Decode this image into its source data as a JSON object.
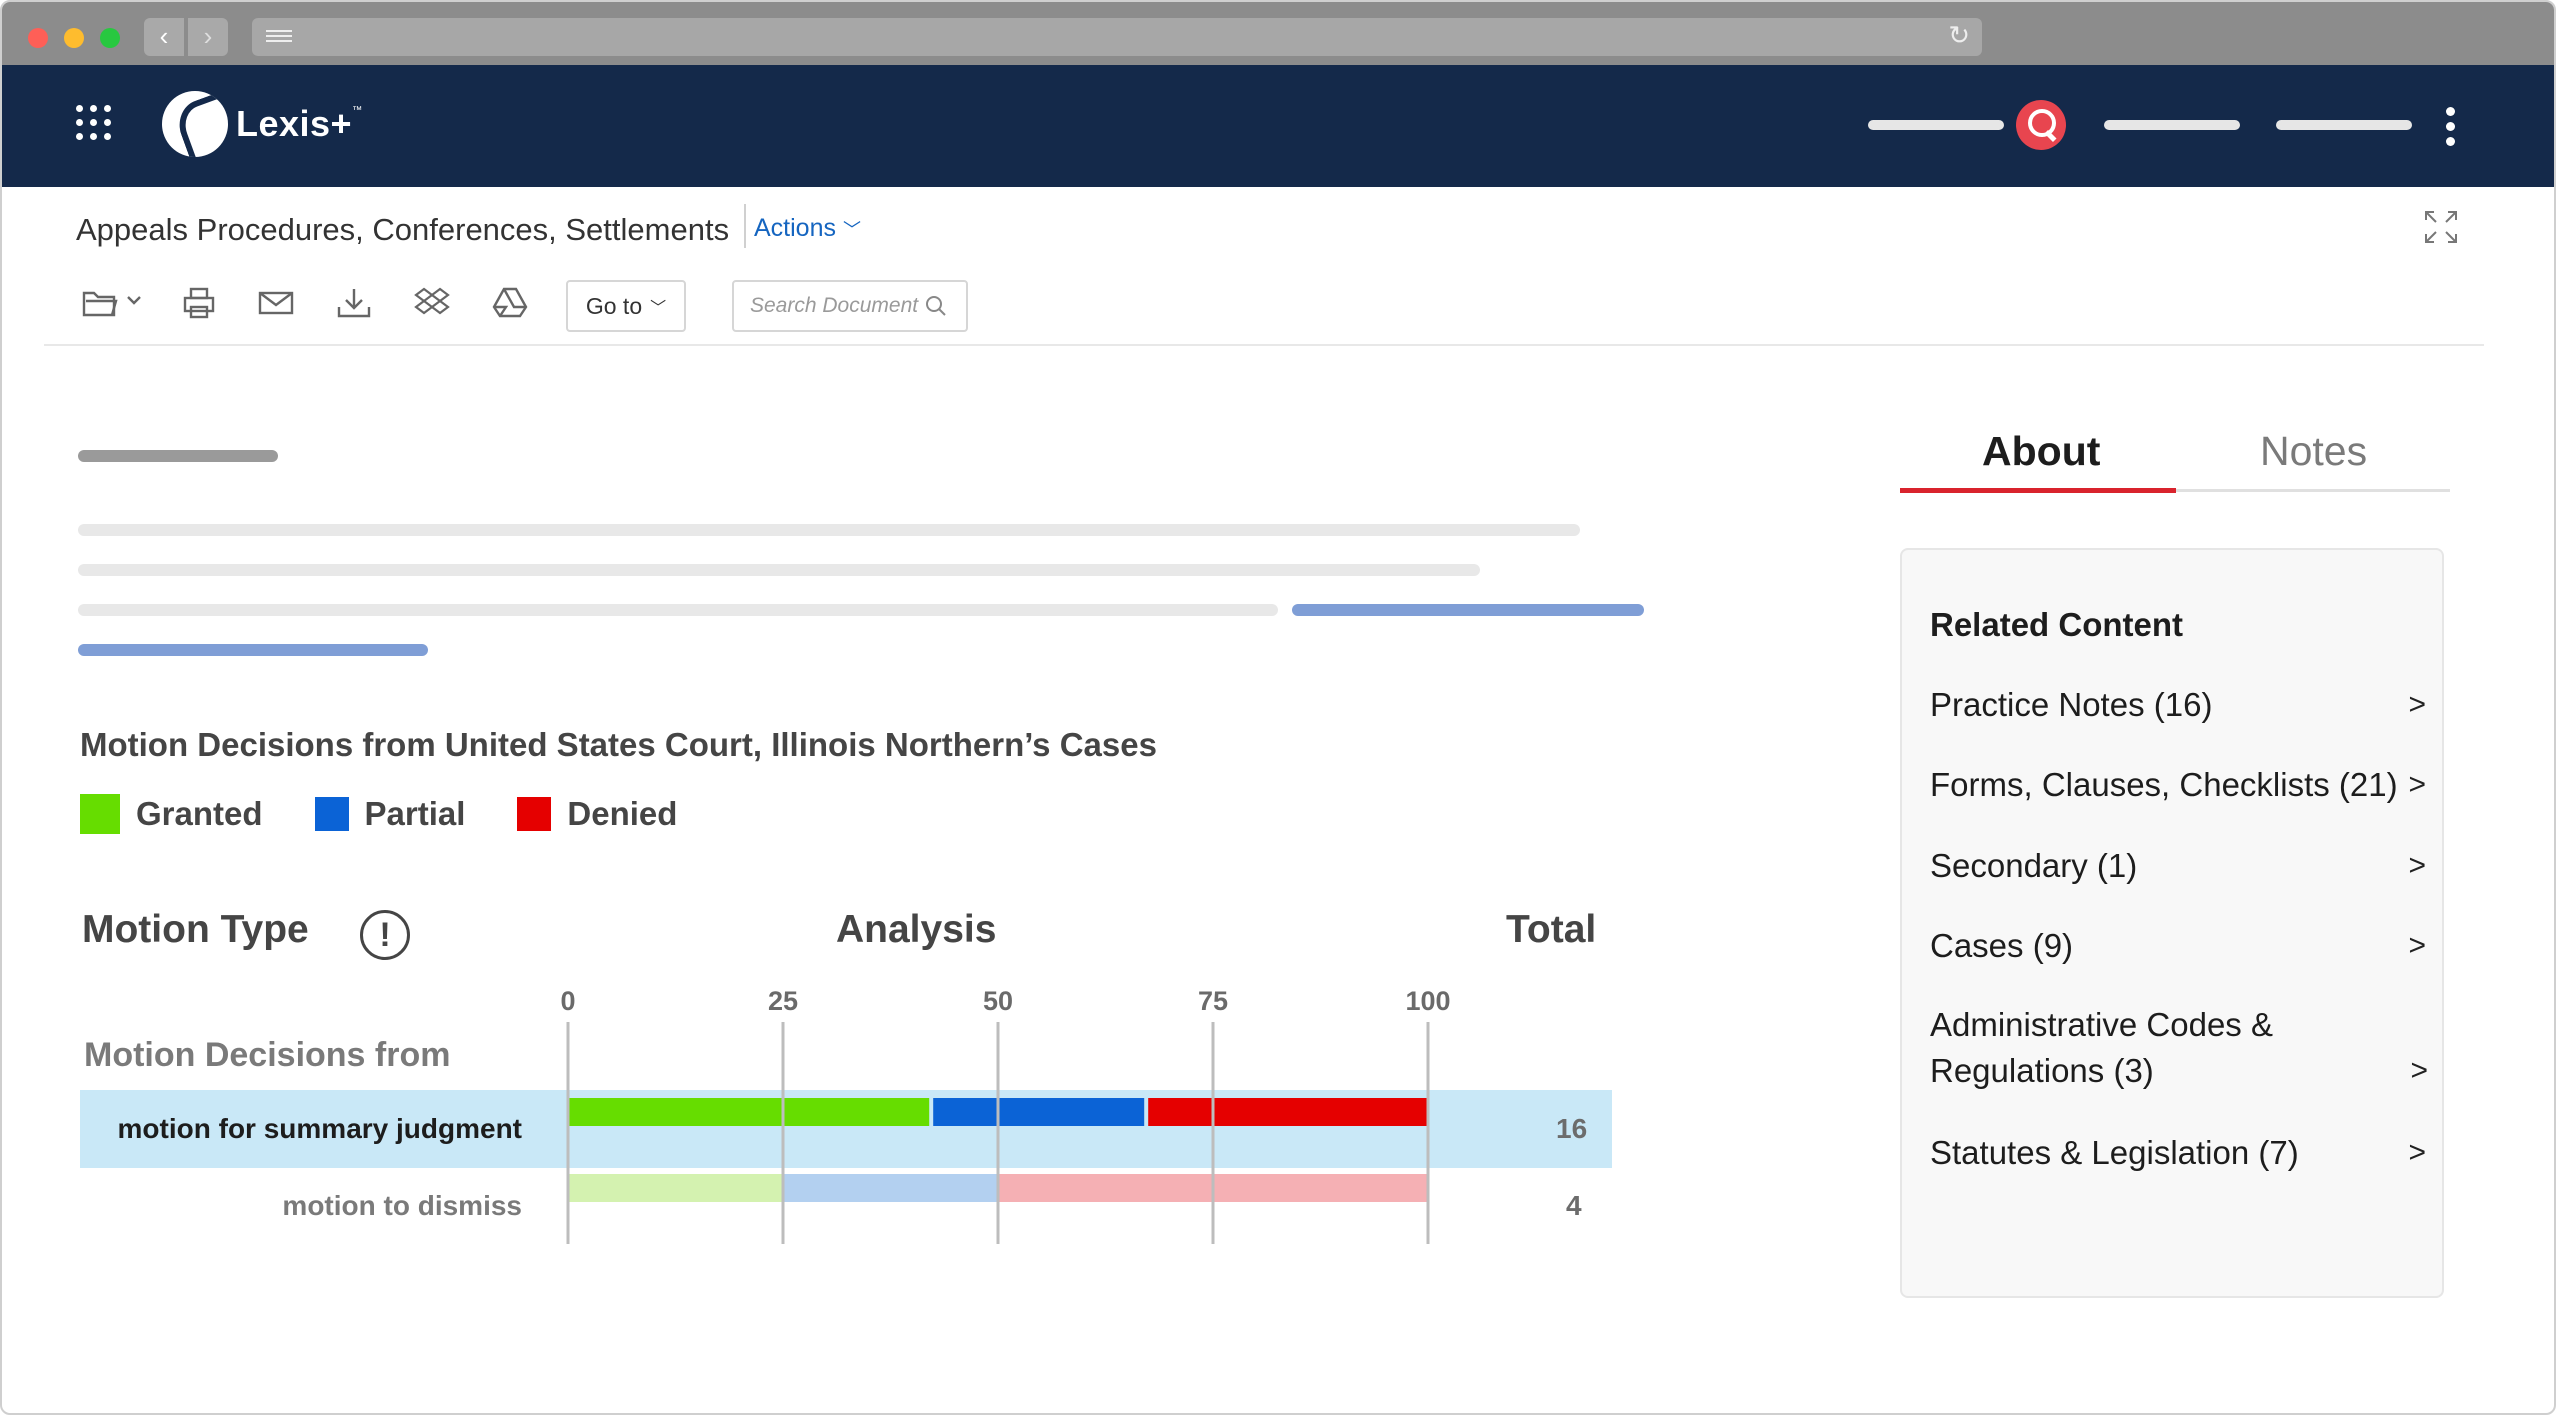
{
  "browser": {
    "back": "‹",
    "forward": "›",
    "reload": "↻"
  },
  "app": {
    "brand": "Lexis+",
    "trademark": "™",
    "accent_color": "#e8454f",
    "header_bg": "#14294a"
  },
  "document": {
    "title": "Appeals Procedures, Conferences, Settlements",
    "actions_label": "Actions",
    "goto_label": "Go to",
    "search_placeholder": "Search Document",
    "toolbar_icons": [
      "folder-icon",
      "print-icon",
      "email-icon",
      "download-icon",
      "dropbox-icon",
      "google-drive-icon"
    ]
  },
  "chart_section": {
    "title": "Motion Decisions from United States Court, Illinois Northern’s Cases",
    "legend": [
      {
        "label": "Granted",
        "color": "#66dd00"
      },
      {
        "label": "Partial",
        "color": "#0b63d6"
      },
      {
        "label": "Denied",
        "color": "#e50000"
      }
    ],
    "headers": {
      "motion_type": "Motion Type",
      "info": "!",
      "analysis": "Analysis",
      "total": "Total"
    },
    "group_label": "Motion Decisions from",
    "rows": [
      {
        "label": "motion for summary judgment",
        "total": "16"
      },
      {
        "label": "motion to dismiss",
        "total": "4"
      }
    ]
  },
  "chart_data": {
    "type": "bar",
    "orientation": "horizontal-stacked",
    "categories": [
      "motion for summary judgment",
      "motion to dismiss"
    ],
    "series": [
      {
        "name": "Granted",
        "values": [
          42,
          25
        ]
      },
      {
        "name": "Partial",
        "values": [
          25,
          25
        ]
      },
      {
        "name": "Denied",
        "values": [
          33,
          50
        ]
      }
    ],
    "xlim": [
      0,
      100
    ],
    "xticks": [
      "0",
      "25",
      "50",
      "75",
      "100"
    ],
    "grid": true,
    "highlighted_row": 0,
    "colors_full": [
      "#66dd00",
      "#0b63d6",
      "#e50000"
    ],
    "colors_faded": [
      "#d4f2b0",
      "#b3d0f0",
      "#f5b0b4"
    ]
  },
  "sidebar": {
    "tabs": [
      {
        "label": "About",
        "active": true
      },
      {
        "label": "Notes",
        "active": false
      }
    ],
    "related_title": "Related Content",
    "related": [
      {
        "label": "Practice Notes (16)",
        "arrow": ">"
      },
      {
        "label": "Forms, Clauses, Checklists (21)",
        "arrow": ">"
      },
      {
        "label": "Secondary (1)",
        "arrow": ">"
      },
      {
        "label": "Cases (9)",
        "arrow": ">"
      },
      {
        "label": "Administrative Codes & Regulations (3)",
        "arrow": ">"
      },
      {
        "label": "Statutes & Legislation (7)",
        "arrow": ">"
      }
    ]
  }
}
